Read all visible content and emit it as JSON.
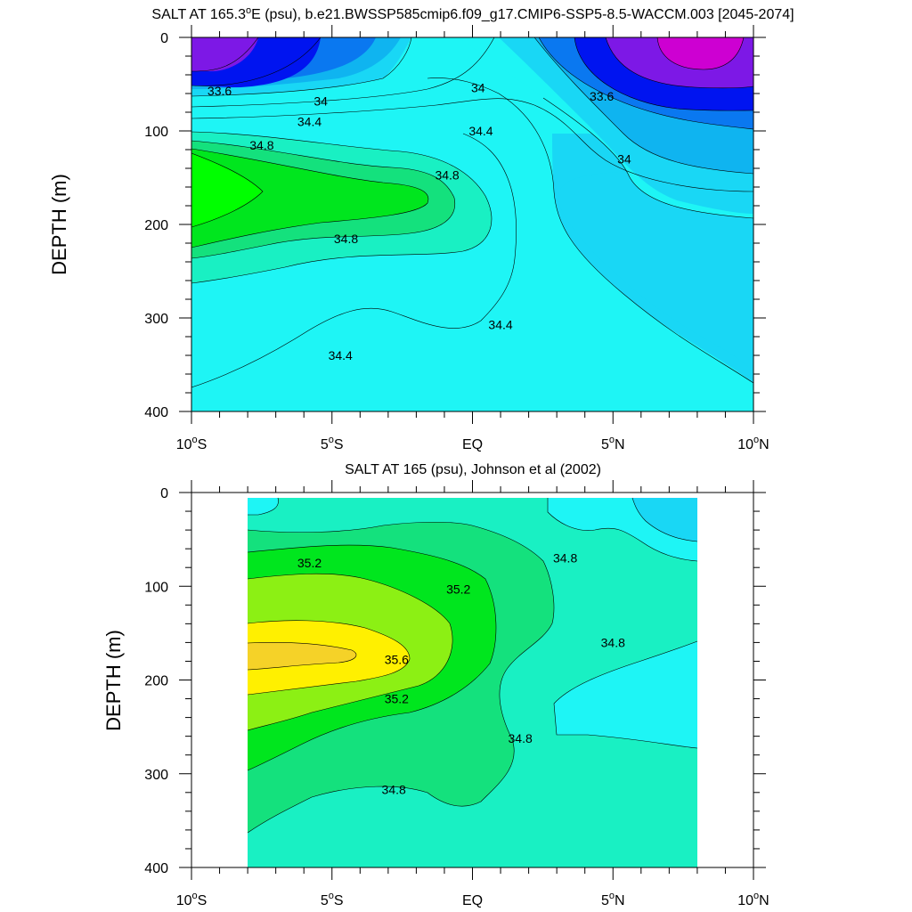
{
  "chart_data": [
    {
      "type": "contour",
      "title_main": "SALT AT 165.3",
      "title_sup": "o",
      "title_rest": "E (psu), b.e21.BWSSP585cmip6.f09_g17.CMIP6-SSP5-8.5-WACCM.003 [2045-2074]",
      "ylabel": "DEPTH (m)",
      "xlim": [
        -10,
        10
      ],
      "ylim": [
        0,
        400
      ],
      "yticks": [
        "0",
        "100",
        "200",
        "300",
        "400"
      ],
      "xticks": [
        {
          "main": "10",
          "sup": "o",
          "post": "S"
        },
        {
          "main": "5",
          "sup": "o",
          "post": "S"
        },
        {
          "main": "EQ",
          "sup": "",
          "post": ""
        },
        {
          "main": "5",
          "sup": "o",
          "post": "N"
        },
        {
          "main": "10",
          "sup": "o",
          "post": "N"
        }
      ],
      "fill_colors": {
        "lt_33_6": "#7d18e6",
        "b_33_6_33_8": "#0014f0",
        "b_33_8_34": "#0a78f0",
        "b_34_34_2": "#0fb4f0",
        "b_34_2_34_4": "#19d7f5",
        "b_34_4_34_6": "#1ef5f5",
        "b_34_6_34_8": "#19f0c3",
        "b_34_8_35": "#14e17d",
        "b_35_35_2": "#00e61e",
        "max_core": "#cd00d2"
      },
      "contour_labels": [
        {
          "value": 33.6,
          "text": "33.6",
          "x": -9.0,
          "depth": 57
        },
        {
          "value": 34.0,
          "text": "34",
          "x": -5.4,
          "depth": 68
        },
        {
          "value": 34.4,
          "text": "34.4",
          "x": -5.8,
          "depth": 90
        },
        {
          "value": 34.8,
          "text": "34.8",
          "x": -7.5,
          "depth": 115
        },
        {
          "value": 34.0,
          "text": "34",
          "x": 0.2,
          "depth": 54
        },
        {
          "value": 34.4,
          "text": "34.4",
          "x": 0.3,
          "depth": 100
        },
        {
          "value": 34.8,
          "text": "34.8",
          "x": -0.9,
          "depth": 147
        },
        {
          "value": 34.8,
          "text": "34.8",
          "x": -4.5,
          "depth": 215
        },
        {
          "value": 34.4,
          "text": "34.4",
          "x": 1.0,
          "depth": 307
        },
        {
          "value": 34.4,
          "text": "34.4",
          "x": -4.7,
          "depth": 340
        },
        {
          "value": 33.6,
          "text": "33.6",
          "x": 4.6,
          "depth": 63
        },
        {
          "value": 34.0,
          "text": "34",
          "x": 5.4,
          "depth": 130
        }
      ]
    },
    {
      "type": "contour",
      "title_main": "SALT AT 165 (psu), Johnson et al (2002)",
      "title_sup": "",
      "title_rest": "",
      "ylabel": "DEPTH (m)",
      "xlim": [
        -10,
        10
      ],
      "ylim": [
        0,
        400
      ],
      "data_xlim": [
        -8,
        8
      ],
      "yticks": [
        "0",
        "100",
        "200",
        "300",
        "400"
      ],
      "xticks": [
        {
          "main": "10",
          "sup": "o",
          "post": "S"
        },
        {
          "main": "5",
          "sup": "o",
          "post": "S"
        },
        {
          "main": "EQ",
          "sup": "",
          "post": ""
        },
        {
          "main": "5",
          "sup": "o",
          "post": "N"
        },
        {
          "main": "10",
          "sup": "o",
          "post": "N"
        }
      ],
      "fill_colors": {
        "b_34_2_34_4": "#19d7f5",
        "b_34_4_34_6": "#1ef5f5",
        "b_34_6_34_8": "#19f0c3",
        "b_34_8_35": "#14e17d",
        "b_35_35_2": "#00e61e",
        "b_35_2_35_4": "#8cf014",
        "b_35_4_35_6": "#fff000",
        "gt_35_6": "#f5d228"
      },
      "contour_labels": [
        {
          "value": 35.2,
          "text": "35.2",
          "x": -5.8,
          "depth": 75
        },
        {
          "value": 35.2,
          "text": "35.2",
          "x": -0.5,
          "depth": 103
        },
        {
          "value": 35.6,
          "text": "35.6",
          "x": -2.7,
          "depth": 178
        },
        {
          "value": 35.2,
          "text": "35.2",
          "x": -2.7,
          "depth": 220
        },
        {
          "value": 34.8,
          "text": "34.8",
          "x": 3.3,
          "depth": 70
        },
        {
          "value": 34.8,
          "text": "34.8",
          "x": 5.0,
          "depth": 160
        },
        {
          "value": 34.8,
          "text": "34.8",
          "x": 1.7,
          "depth": 262
        },
        {
          "value": 34.8,
          "text": "34.8",
          "x": -2.8,
          "depth": 317
        }
      ]
    }
  ]
}
